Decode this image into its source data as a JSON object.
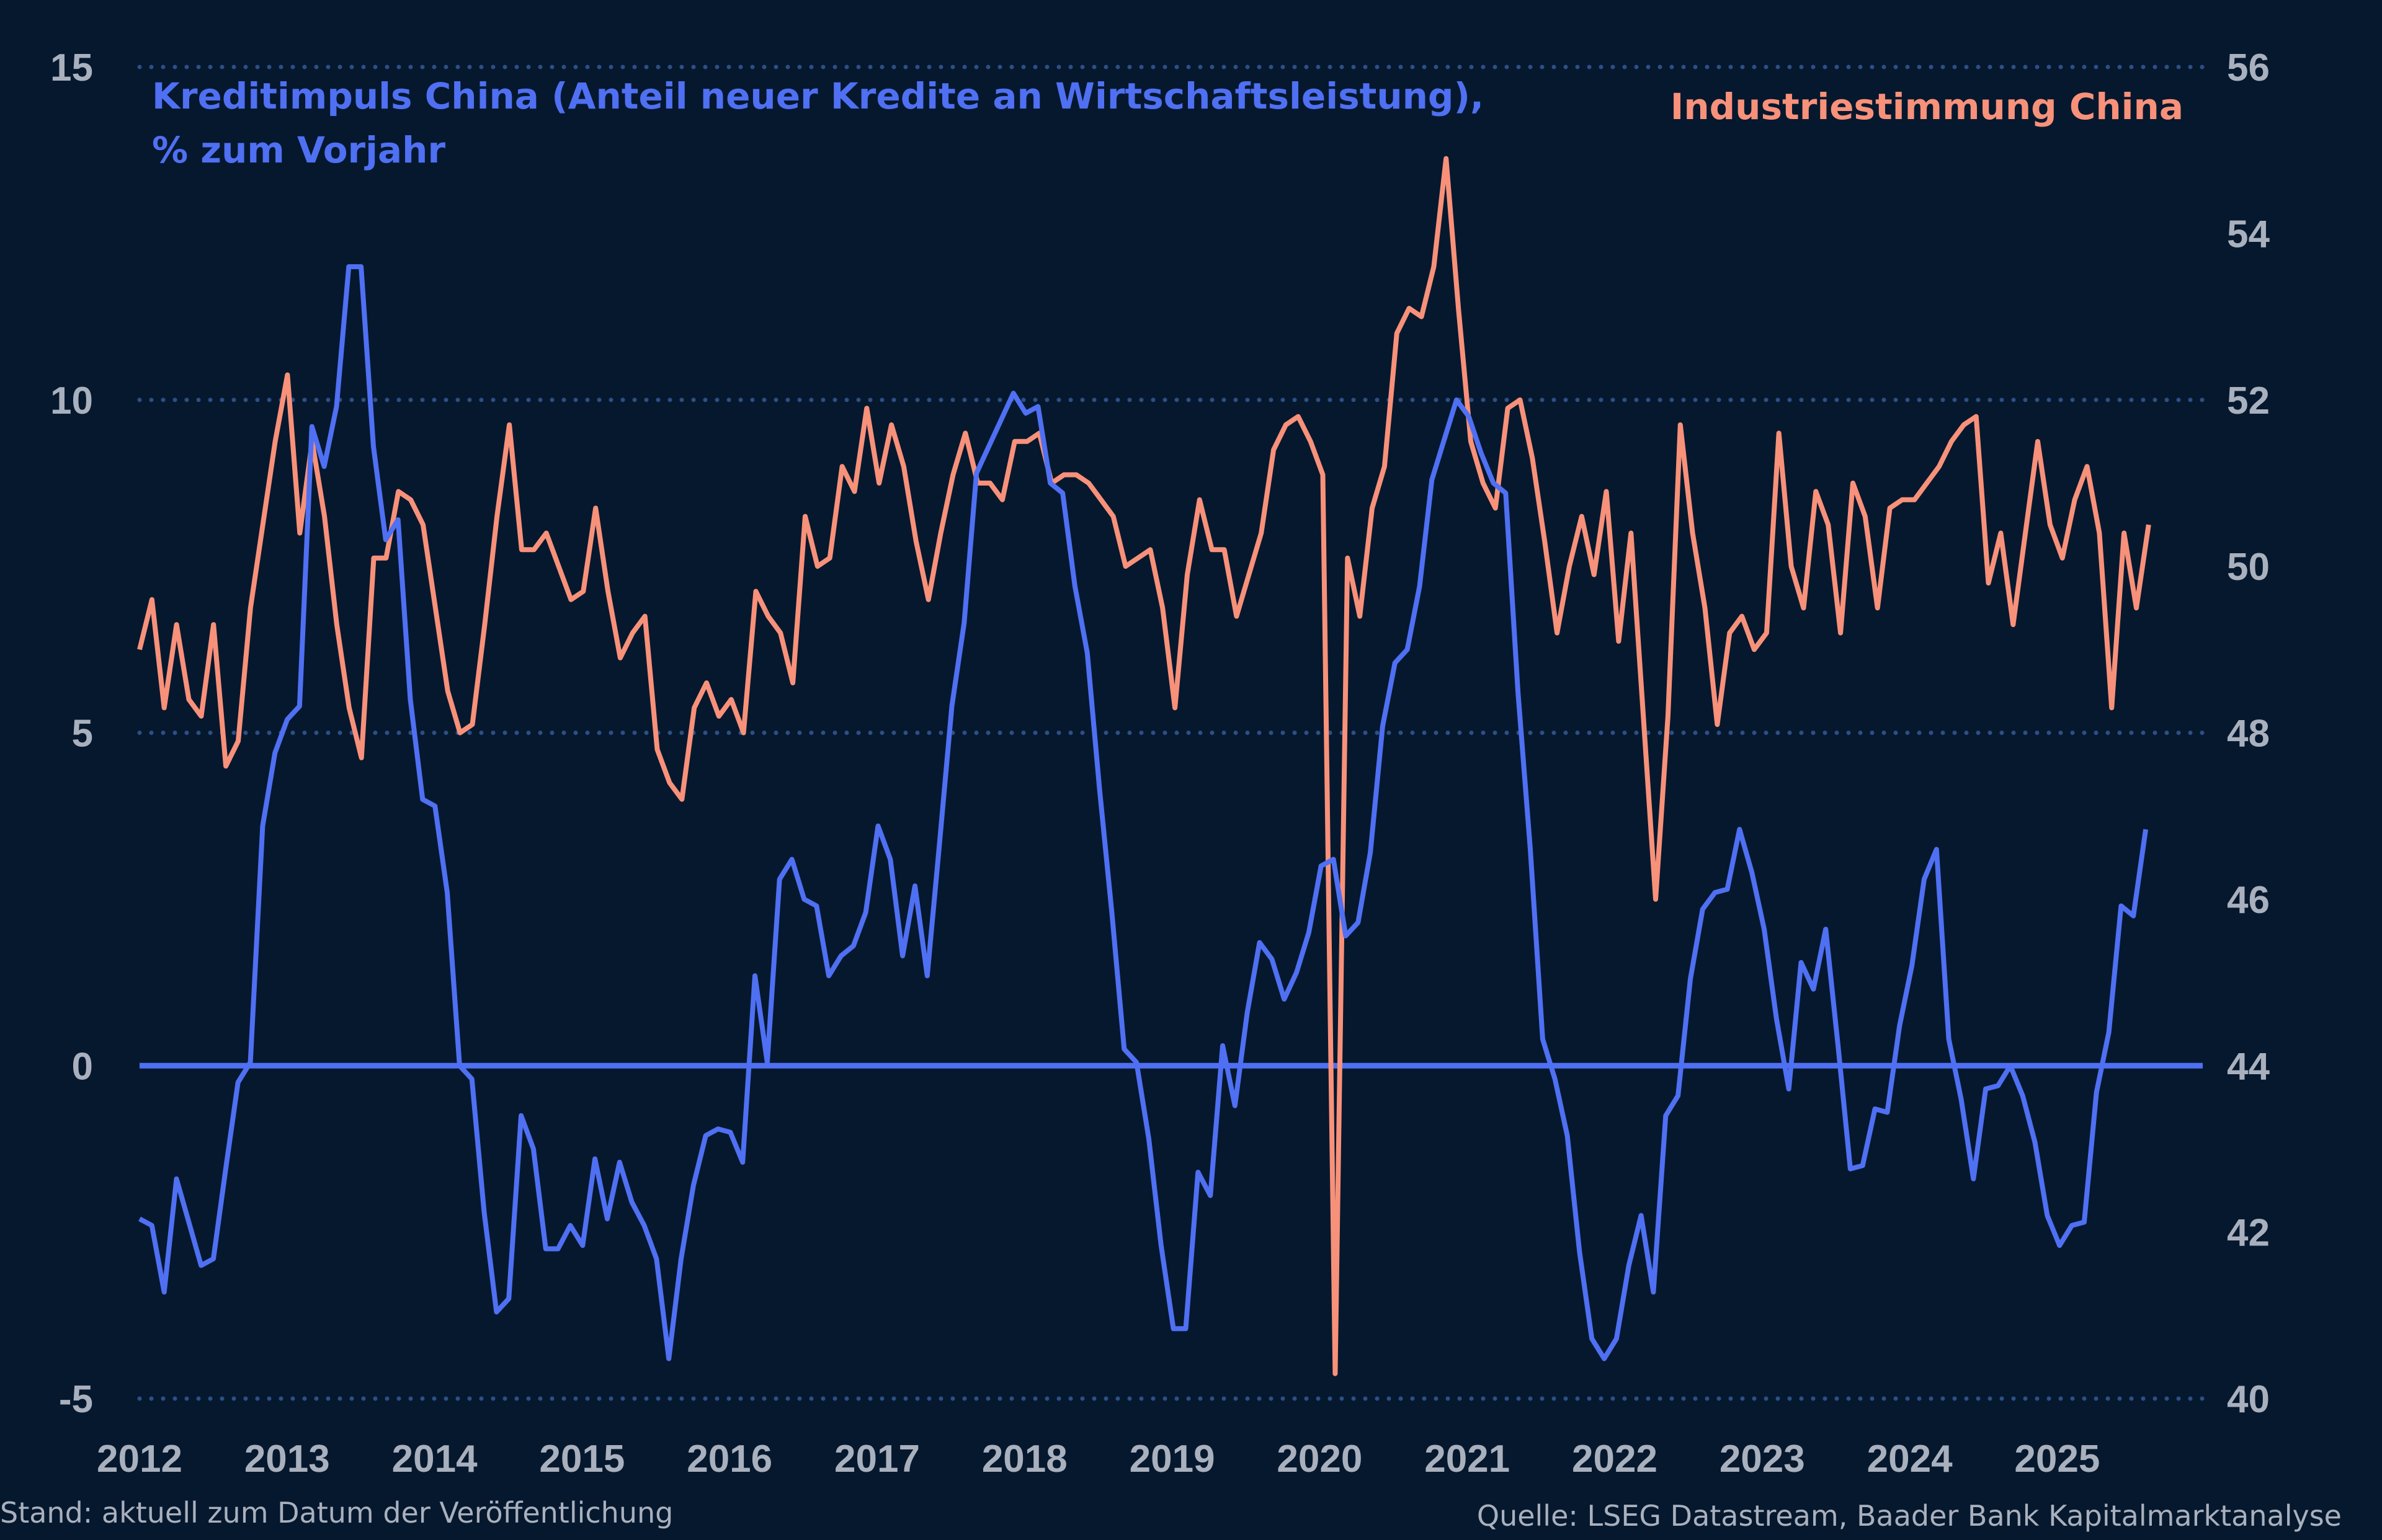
{
  "chart_data": {
    "type": "line",
    "title_left": "Kreditimpuls China (Anteil neuer Kredite an Wirtschaftsleistung),",
    "title_left_line2": "% zum Vorjahr",
    "title_right": "Industriestimmung China",
    "footer_left": "Stand: aktuell zum Datum der Veröffentlichung",
    "footer_right": "Quelle: LSEG Datastream, Baader Bank Kapitalmarktanalyse",
    "colors": {
      "background": "#06182e",
      "blue": "#4f70f2",
      "orange": "#f7917a",
      "grid": "#2c4f86",
      "tick": "#a9b0bd"
    },
    "x_ticks": [
      "2012",
      "2013",
      "2014",
      "2015",
      "2016",
      "2017",
      "2018",
      "2019",
      "2020",
      "2021",
      "2022",
      "2023",
      "2024",
      "2025"
    ],
    "xlim": [
      2012,
      2026
    ],
    "y_left": {
      "ticks": [
        "15",
        "10",
        "5",
        "0",
        "-5"
      ],
      "values": [
        15,
        10,
        5,
        0,
        -5
      ],
      "ylim": [
        -5,
        15
      ]
    },
    "y_right": {
      "ticks": [
        "56",
        "54",
        "52",
        "50",
        "48",
        "46",
        "44",
        "42",
        "40"
      ],
      "values": [
        56,
        54,
        52,
        50,
        48,
        46,
        44,
        42,
        40
      ],
      "ylim": [
        40,
        56
      ]
    },
    "grid": "dotted horizontal",
    "series": [
      {
        "name": "Kreditimpuls China",
        "axis": "left",
        "x_start": 2012.0,
        "x_end": 2025.6,
        "values": [
          -2.3,
          -2.4,
          -3.4,
          -1.7,
          -2.35,
          -3.0,
          -2.9,
          -1.55,
          -0.25,
          0.05,
          3.6,
          4.7,
          5.2,
          5.4,
          9.6,
          9.0,
          9.9,
          12.0,
          12.0,
          9.3,
          7.9,
          8.2,
          5.5,
          4.0,
          3.9,
          2.6,
          0,
          -0.2,
          -2.2,
          -3.7,
          -3.5,
          -0.75,
          -1.25,
          -2.75,
          -2.75,
          -2.4,
          -2.7,
          -1.4,
          -2.3,
          -1.45,
          -2.05,
          -2.4,
          -2.9,
          -4.4,
          -2.9,
          -1.8,
          -1.05,
          -0.95,
          -1.0,
          -1.45,
          1.35,
          0.05,
          2.8,
          3.1,
          2.5,
          2.4,
          1.35,
          1.65,
          1.8,
          2.3,
          3.6,
          3.1,
          1.65,
          2.7,
          1.35,
          3.35,
          5.4,
          6.65,
          8.9,
          9.3,
          9.7,
          10.1,
          9.8,
          9.9,
          8.75,
          8.6,
          7.2,
          6.2,
          4.15,
          2.3,
          0.25,
          0.05,
          -1.1,
          -2.7,
          -3.95,
          -3.95,
          -1.6,
          -1.95,
          0.3,
          -0.6,
          0.8,
          1.85,
          1.6,
          1.0,
          1.4,
          2.0,
          3.0,
          3.1,
          1.95,
          2.15,
          3.2,
          5.1,
          6.05,
          6.25,
          7.2,
          8.8,
          9.4,
          10.0,
          9.75,
          9.2,
          8.75,
          8.6,
          5.6,
          3.25,
          0.4,
          -0.2,
          -1.05,
          -2.8,
          -4.1,
          -4.4,
          -4.1,
          -3.0,
          -2.25,
          -3.4,
          -0.75,
          -0.45,
          1.3,
          2.35,
          2.6,
          2.65,
          3.55,
          2.9,
          2.05,
          0.7,
          -0.35,
          1.55,
          1.15,
          2.05,
          0.3,
          -1.55,
          -1.5,
          -0.65,
          -0.7,
          0.6,
          1.5,
          2.8,
          3.25,
          0.4,
          -0.5,
          -1.7,
          -0.35,
          -0.3,
          0,
          -0.45,
          -1.15,
          -2.25,
          -2.7,
          -2.4,
          -2.35,
          -0.4,
          0.5,
          2.4,
          2.25,
          3.55
        ]
      },
      {
        "name": "Industriestimmung China",
        "axis": "right",
        "x_start": 2012.0,
        "x_end": 2025.62,
        "values": [
          49.0,
          49.6,
          48.3,
          49.3,
          48.4,
          48.2,
          49.3,
          47.6,
          47.9,
          49.5,
          50.5,
          51.5,
          52.3,
          50.4,
          51.5,
          50.6,
          49.3,
          48.3,
          47.7,
          50.1,
          50.1,
          50.9,
          50.8,
          50.5,
          49.5,
          48.5,
          48.0,
          48.1,
          49.3,
          50.6,
          51.7,
          50.2,
          50.2,
          50.4,
          50.0,
          49.6,
          49.7,
          50.7,
          49.7,
          48.9,
          49.2,
          49.4,
          47.8,
          47.4,
          47.2,
          48.3,
          48.6,
          48.2,
          48.4,
          48.0,
          49.7,
          49.4,
          49.2,
          48.6,
          50.6,
          50.0,
          50.1,
          51.2,
          50.9,
          51.9,
          51.0,
          51.7,
          51.2,
          50.3,
          49.6,
          50.4,
          51.1,
          51.6,
          51.0,
          51.0,
          50.8,
          51.5,
          51.5,
          51.6,
          51.0,
          51.1,
          51.1,
          51.0,
          50.8,
          50.6,
          50.0,
          50.1,
          50.2,
          49.5,
          48.3,
          49.9,
          50.8,
          50.2,
          50.2,
          49.4,
          49.9,
          50.4,
          51.4,
          51.7,
          51.8,
          51.5,
          51.1,
          40.3,
          50.1,
          49.4,
          50.7,
          51.2,
          52.8,
          53.1,
          53.0,
          53.6,
          54.9,
          53.1,
          51.5,
          51.0,
          50.7,
          51.9,
          52.0,
          51.3,
          50.3,
          49.2,
          50.0,
          50.6,
          49.9,
          50.9,
          49.1,
          50.4,
          48.2,
          46.0,
          48.2,
          51.7,
          50.4,
          49.5,
          48.1,
          49.2,
          49.4,
          49.0,
          49.2,
          51.6,
          50.0,
          49.5,
          50.9,
          50.5,
          49.2,
          51.0,
          50.6,
          49.5,
          50.7,
          50.8,
          50.8,
          51.0,
          51.2,
          51.5,
          51.7,
          51.8,
          49.8,
          50.4,
          49.3,
          50.4,
          51.5,
          50.5,
          50.1,
          50.8,
          51.2,
          50.4,
          48.3,
          50.4,
          49.5,
          50.5
        ]
      }
    ]
  }
}
